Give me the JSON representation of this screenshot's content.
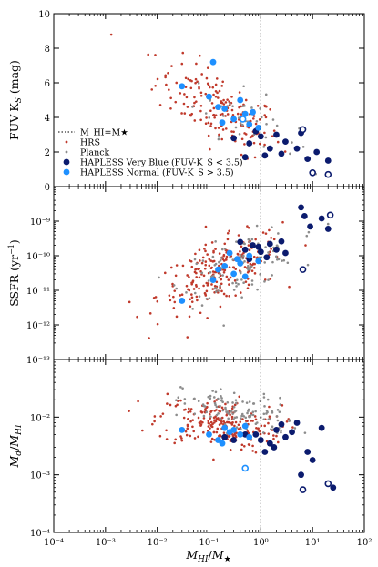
{
  "chart_data": [
    {
      "type": "scatter",
      "title": "",
      "xlabel": "M_HI/M★",
      "ylabel": "FUV-K_S (mag)",
      "xscale": "log",
      "xlim": [
        0.0001,
        100
      ],
      "ylim": [
        0,
        10
      ],
      "y_ticks": [
        "0",
        "2",
        "4",
        "6",
        "8",
        "10"
      ],
      "reference_line_x": 1,
      "legend": {
        "placement": "lower-left",
        "entries": [
          {
            "label": "M_HI=M★",
            "style": "dotted-line",
            "color": "#000000"
          },
          {
            "label": "HRS",
            "style": "small-dot",
            "color": "#c0392b"
          },
          {
            "label": "Planck",
            "style": "small-dot",
            "color": "#8c8c8c"
          },
          {
            "label": "HAPLESS Very Blue (FUV-K_S < 3.5)",
            "style": "large-dot",
            "color": "#0b1b6e"
          },
          {
            "label": "HAPLESS Normal (FUV-K_S > 3.5)",
            "style": "large-dot",
            "color": "#1e90ff"
          }
        ]
      },
      "series": [
        {
          "name": "HAPLESS Very Blue (FUV-K_S < 3.5)",
          "color": "#0b1b6e",
          "points": [
            [
              0.3,
              2.8
            ],
            [
              0.6,
              2.5
            ],
            [
              0.8,
              3.2
            ],
            [
              1.0,
              2.9
            ],
            [
              1.5,
              2.2
            ],
            [
              2.0,
              3.0
            ],
            [
              3.0,
              2.6
            ],
            [
              5.0,
              2.2
            ],
            [
              8.0,
              1.6
            ],
            [
              12.0,
              2.0
            ],
            [
              20.0,
              1.5
            ],
            [
              0.5,
              1.7
            ],
            [
              1.2,
              1.8
            ],
            [
              6.0,
              3.1
            ],
            [
              2.5,
              1.9
            ]
          ],
          "open_points": [
            [
              6.5,
              3.3
            ],
            [
              10.0,
              0.8
            ],
            [
              20.0,
              0.7
            ]
          ]
        },
        {
          "name": "HAPLESS Normal (FUV-K_S > 3.5)",
          "color": "#1e90ff",
          "points": [
            [
              0.12,
              7.2
            ],
            [
              0.03,
              5.8
            ],
            [
              0.1,
              5.2
            ],
            [
              0.2,
              4.5
            ],
            [
              0.4,
              5.0
            ],
            [
              0.5,
              4.2
            ],
            [
              0.7,
              4.3
            ],
            [
              0.3,
              3.9
            ],
            [
              0.18,
              3.7
            ],
            [
              0.6,
              3.6
            ],
            [
              0.15,
              4.6
            ],
            [
              0.9,
              3.4
            ]
          ],
          "open_points": [
            [
              0.45,
              3.9
            ]
          ]
        },
        {
          "name": "HRS",
          "color": "#c0392b",
          "points": []
        },
        {
          "name": "Planck",
          "color": "#8c8c8c",
          "points": []
        }
      ]
    },
    {
      "type": "scatter",
      "title": "",
      "xlabel": "M_HI/M★",
      "ylabel": "SSFR (yr⁻¹)",
      "xscale": "log",
      "yscale": "log",
      "xlim": [
        0.0001,
        100
      ],
      "ylim": [
        1e-13,
        1e-08
      ],
      "y_ticks": [
        "10⁻¹³",
        "10⁻¹²",
        "10⁻¹¹",
        "10⁻¹⁰",
        "10⁻⁹"
      ],
      "reference_line_x": 1,
      "series": [
        {
          "name": "HAPLESS Very Blue (FUV-K_S < 3.5)",
          "color": "#0b1b6e",
          "points": [
            [
              0.4,
              2.5e-10
            ],
            [
              0.7,
              2e-10
            ],
            [
              1.0,
              1.3e-10
            ],
            [
              1.5,
              2.2e-10
            ],
            [
              2.0,
              1.5e-10
            ],
            [
              3.0,
              1.2e-10
            ],
            [
              0.6,
              8e-11
            ],
            [
              0.9,
              1.8e-10
            ],
            [
              7.0,
              1.4e-09
            ],
            [
              9.0,
              7e-10
            ],
            [
              15.0,
              1.2e-09
            ],
            [
              20.0,
              6e-10
            ],
            [
              6.0,
              2.5e-09
            ],
            [
              1.3,
              9e-11
            ],
            [
              2.5,
              2.6e-10
            ],
            [
              0.5,
              1.5e-10
            ]
          ],
          "open_points": [
            [
              22.0,
              1.5e-09
            ],
            [
              6.5,
              4e-11
            ]
          ]
        },
        {
          "name": "HAPLESS Normal (FUV-K_S > 3.5)",
          "color": "#1e90ff",
          "points": [
            [
              0.03,
              5e-12
            ],
            [
              0.12,
              2e-11
            ],
            [
              0.2,
              5e-11
            ],
            [
              0.3,
              3e-11
            ],
            [
              0.4,
              6e-11
            ],
            [
              0.15,
              4e-11
            ],
            [
              0.6,
              1e-10
            ],
            [
              0.9,
              7e-11
            ],
            [
              0.5,
              2.5e-11
            ],
            [
              0.25,
              1.2e-10
            ],
            [
              0.35,
              8e-11
            ]
          ],
          "open_points": []
        },
        {
          "name": "HRS",
          "color": "#c0392b",
          "points": []
        },
        {
          "name": "Planck",
          "color": "#8c8c8c",
          "points": []
        }
      ]
    },
    {
      "type": "scatter",
      "title": "",
      "xlabel": "M_HI/M★",
      "ylabel": "M_d/M_HI",
      "xscale": "log",
      "yscale": "log",
      "xlim": [
        0.0001,
        100
      ],
      "ylim": [
        0.0001,
        0.1
      ],
      "x_ticks": [
        "10⁻⁴",
        "10⁻³",
        "10⁻²",
        "10⁻¹",
        "10⁰",
        "10¹",
        "10²"
      ],
      "y_ticks": [
        "10⁻⁴",
        "10⁻³",
        "10⁻²"
      ],
      "reference_line_x": 1,
      "series": [
        {
          "name": "HAPLESS Very Blue (FUV-K_S < 3.5)",
          "color": "#0b1b6e",
          "points": [
            [
              0.8,
              0.005
            ],
            [
              1.0,
              0.004
            ],
            [
              1.5,
              0.0035
            ],
            [
              2.0,
              0.006
            ],
            [
              3.0,
              0.0045
            ],
            [
              5.0,
              0.008
            ],
            [
              0.5,
              0.005
            ],
            [
              1.2,
              0.0025
            ],
            [
              8.0,
              0.0025
            ],
            [
              10.0,
              0.0018
            ],
            [
              6.0,
              0.001
            ],
            [
              2.5,
              0.0075
            ],
            [
              15.0,
              0.0065
            ],
            [
              25.0,
              0.0006
            ],
            [
              0.3,
              0.004
            ],
            [
              0.2,
              0.0045
            ],
            [
              1.8,
              0.003
            ],
            [
              4.0,
              0.0055
            ]
          ],
          "open_points": [
            [
              6.5,
              0.00055
            ],
            [
              20.0,
              0.0007
            ]
          ]
        },
        {
          "name": "HAPLESS Normal (FUV-K_S > 3.5)",
          "color": "#1e90ff",
          "points": [
            [
              0.03,
              0.006
            ],
            [
              0.1,
              0.005
            ],
            [
              0.15,
              0.004
            ],
            [
              0.2,
              0.0065
            ],
            [
              0.3,
              0.006
            ],
            [
              0.4,
              0.005
            ],
            [
              0.5,
              0.007
            ],
            [
              0.18,
              0.0035
            ],
            [
              0.6,
              0.0045
            ],
            [
              0.25,
              0.0055
            ]
          ],
          "open_points": [
            [
              0.5,
              0.0013
            ]
          ]
        },
        {
          "name": "HRS",
          "color": "#c0392b",
          "points": []
        },
        {
          "name": "Planck",
          "color": "#8c8c8c",
          "points": []
        }
      ]
    }
  ]
}
